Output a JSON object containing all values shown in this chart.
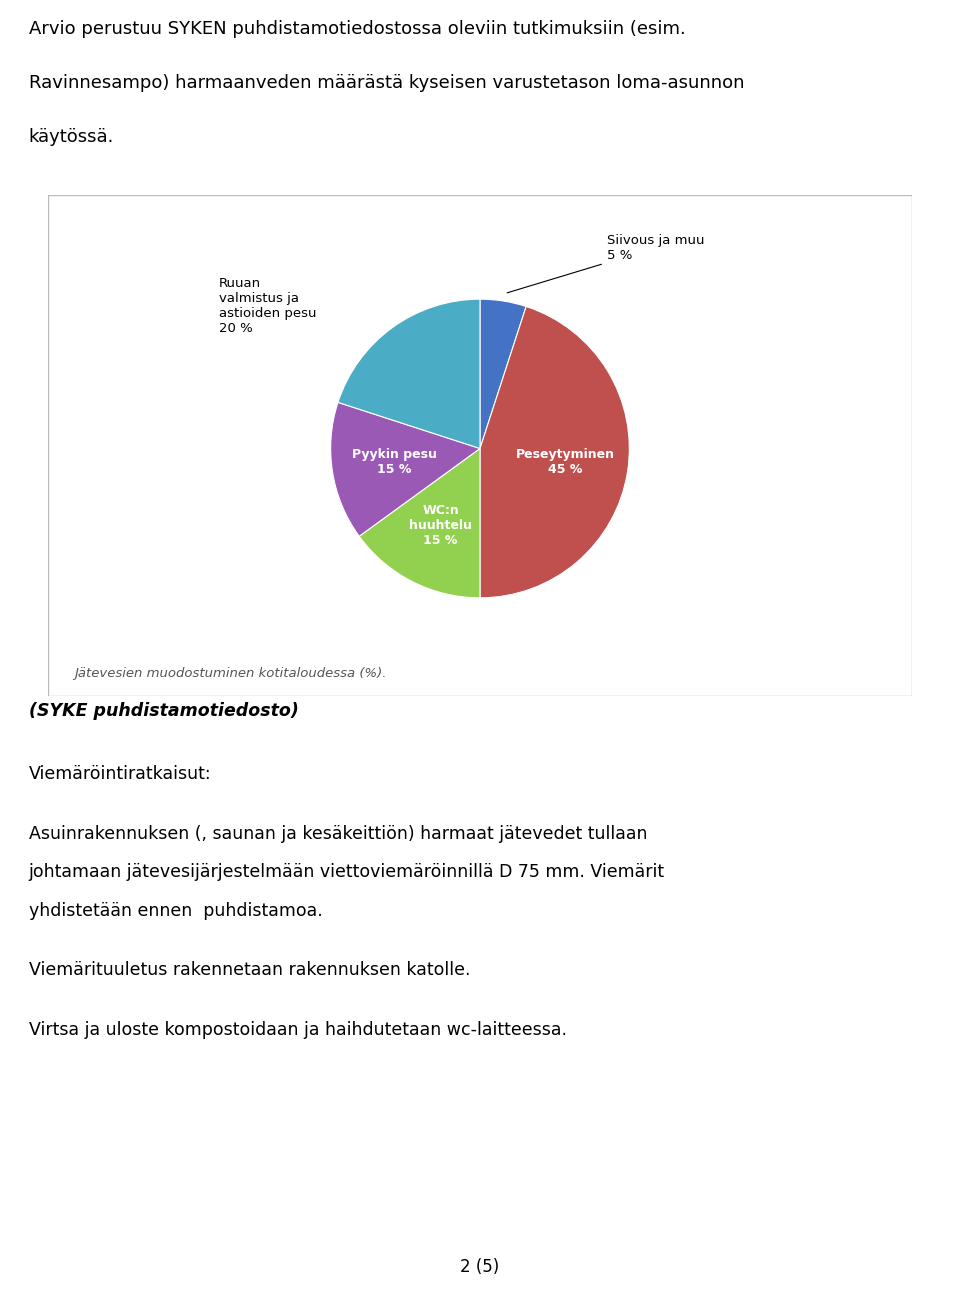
{
  "top_text_line1": "Arvio perustuu SYKEN puhdistamotiedostossa oleviin tutkimuksiin (esim.",
  "top_text_line2": "Ravinnesampo) harmaanveden määrästä kyseisen varustetason loma-asunnon",
  "top_text_line3": "käytössä.",
  "pie_values": [
    5,
    45,
    15,
    15,
    20
  ],
  "pie_colors": [
    "#4472C4",
    "#C0504D",
    "#92D050",
    "#9B59B6",
    "#4BACC6"
  ],
  "caption": "Jätevesien muodostuminen kotitaloudessa (%).",
  "body_text_bold": "(SYKE puhdistamotiedosto)",
  "body_lines": [
    "",
    "Viemäröintiratkaisut:",
    "",
    "Asuinrakennuksen (, saunan ja kesäkeittiön) harmaat jätevedet tullaan",
    "johtamaan jätevesijärjestelmään viettoviemäröinnillä D 75 mm. Viemärit",
    "yhdistetään ennen  puhdistamoa.",
    "",
    "Viemärituuletus rakennetaan rakennuksen katolle.",
    "",
    "Virtsa ja uloste kompostoidaan ja haihdutetaan wc-laitteessa."
  ],
  "footer_text": "2 (5)",
  "bg_color": "#ffffff",
  "text_color": "#000000",
  "box_border_color": "#bbbbbb"
}
